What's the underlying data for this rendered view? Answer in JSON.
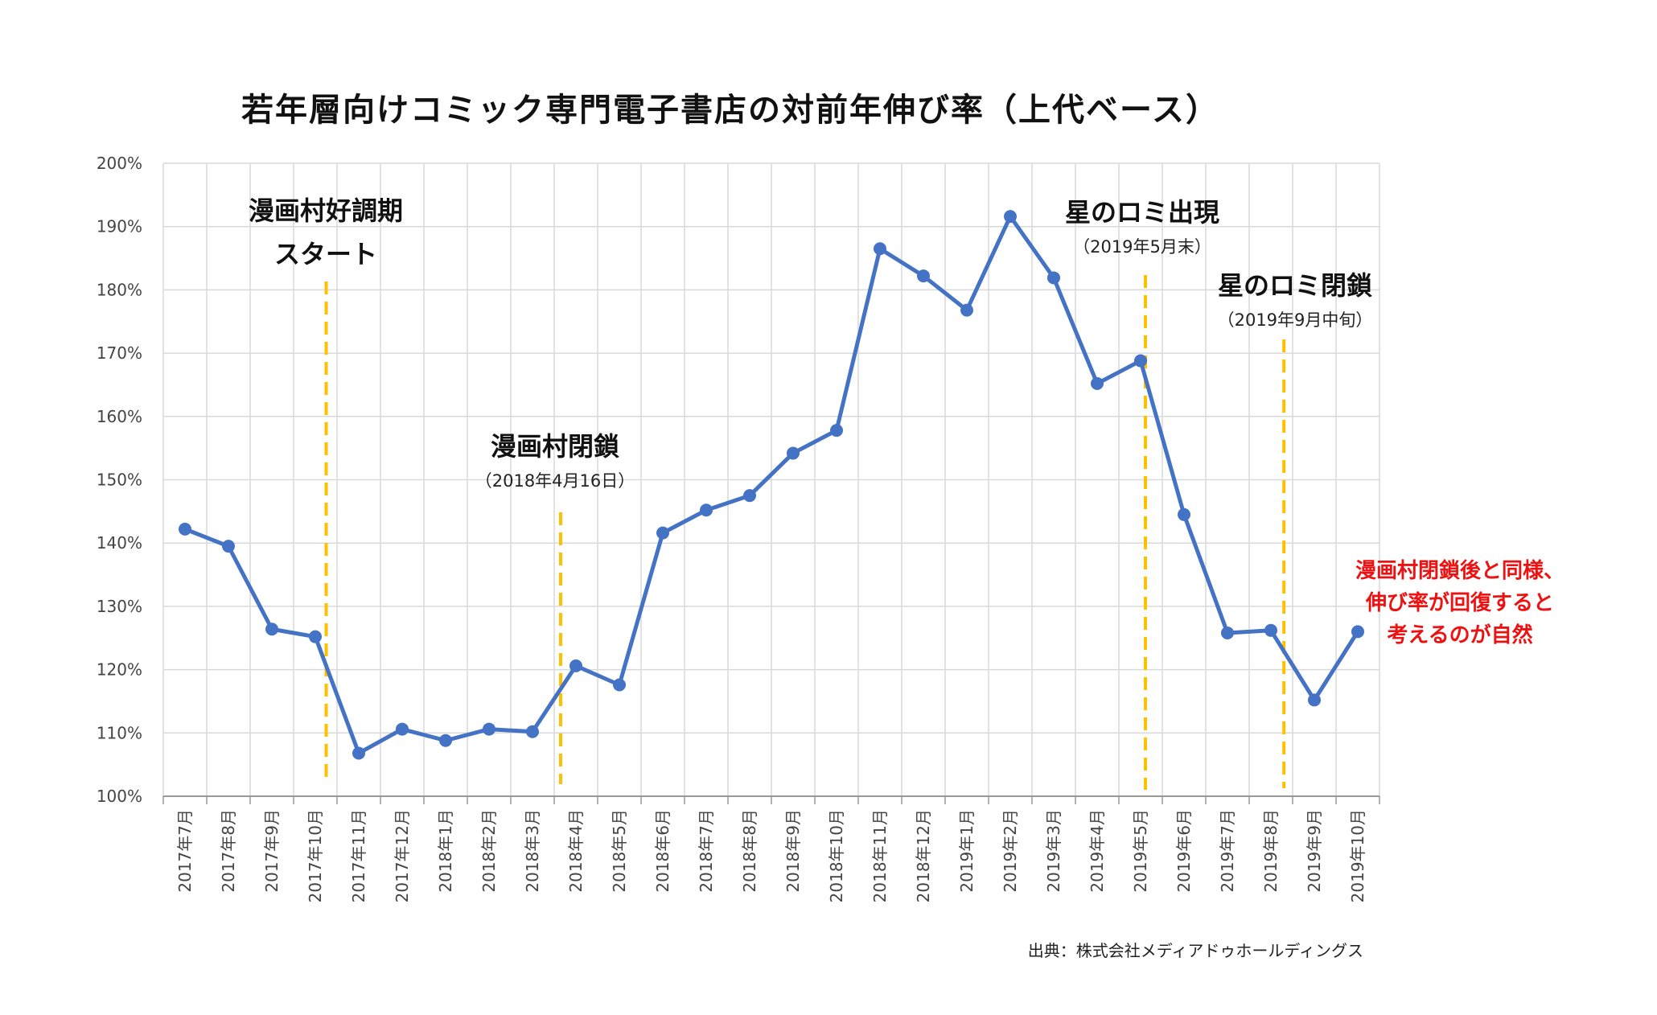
{
  "chart_data": {
    "type": "line",
    "title": "若年層向けコミック専門電子書店の対前年伸び率（上代ベース）",
    "categories": [
      "2017年7月",
      "2017年8月",
      "2017年9月",
      "2017年10月",
      "2017年11月",
      "2017年12月",
      "2018年1月",
      "2018年2月",
      "2018年3月",
      "2018年4月",
      "2018年5月",
      "2018年6月",
      "2018年7月",
      "2018年8月",
      "2018年9月",
      "2018年10月",
      "2018年11月",
      "2018年12月",
      "2019年1月",
      "2019年2月",
      "2019年3月",
      "2019年4月",
      "2019年5月",
      "2019年6月",
      "2019年7月",
      "2019年8月",
      "2019年9月",
      "2019年10月"
    ],
    "series": [
      {
        "values": [
          142.2,
          139.5,
          126.4,
          125.2,
          106.8,
          110.6,
          108.8,
          110.6,
          110.2,
          120.6,
          117.6,
          141.6,
          145.2,
          147.5,
          154.2,
          157.8,
          186.5,
          182.2,
          176.8,
          191.6,
          181.9,
          165.2,
          168.8,
          144.5,
          125.8,
          126.2,
          115.2,
          126.0
        ],
        "color": "#4472c4"
      }
    ],
    "ylim": [
      100,
      200
    ],
    "yticks": [
      "100%",
      "110%",
      "120%",
      "130%",
      "140%",
      "150%",
      "160%",
      "170%",
      "180%",
      "190%",
      "200%"
    ],
    "grid": true,
    "annotations": [
      {
        "lines": [
          "漫画村好調期",
          "スタート"
        ],
        "marker_after_index": 3
      },
      {
        "lines": [
          "漫画村閉鎖"
        ],
        "note": "（2018年4月16日）",
        "marker_index": 9
      },
      {
        "lines": [
          "星のロミ出現"
        ],
        "note": "（2019年5月末）",
        "marker_index": 22
      },
      {
        "lines": [
          "星のロミ閉鎖"
        ],
        "note": "（2019年9月中旬）",
        "marker_after_index": 25
      }
    ],
    "callout": [
      "漫画村閉鎖後と同様、",
      "伸び率が回復すると",
      "考えるのが自然"
    ],
    "source": "出典：株式会社メディアドゥホールディングス",
    "colors": {
      "line": "#4472c4",
      "marker_line": "#ffc000",
      "callout": "#ee1111",
      "grid": "#d9d9d9"
    }
  }
}
